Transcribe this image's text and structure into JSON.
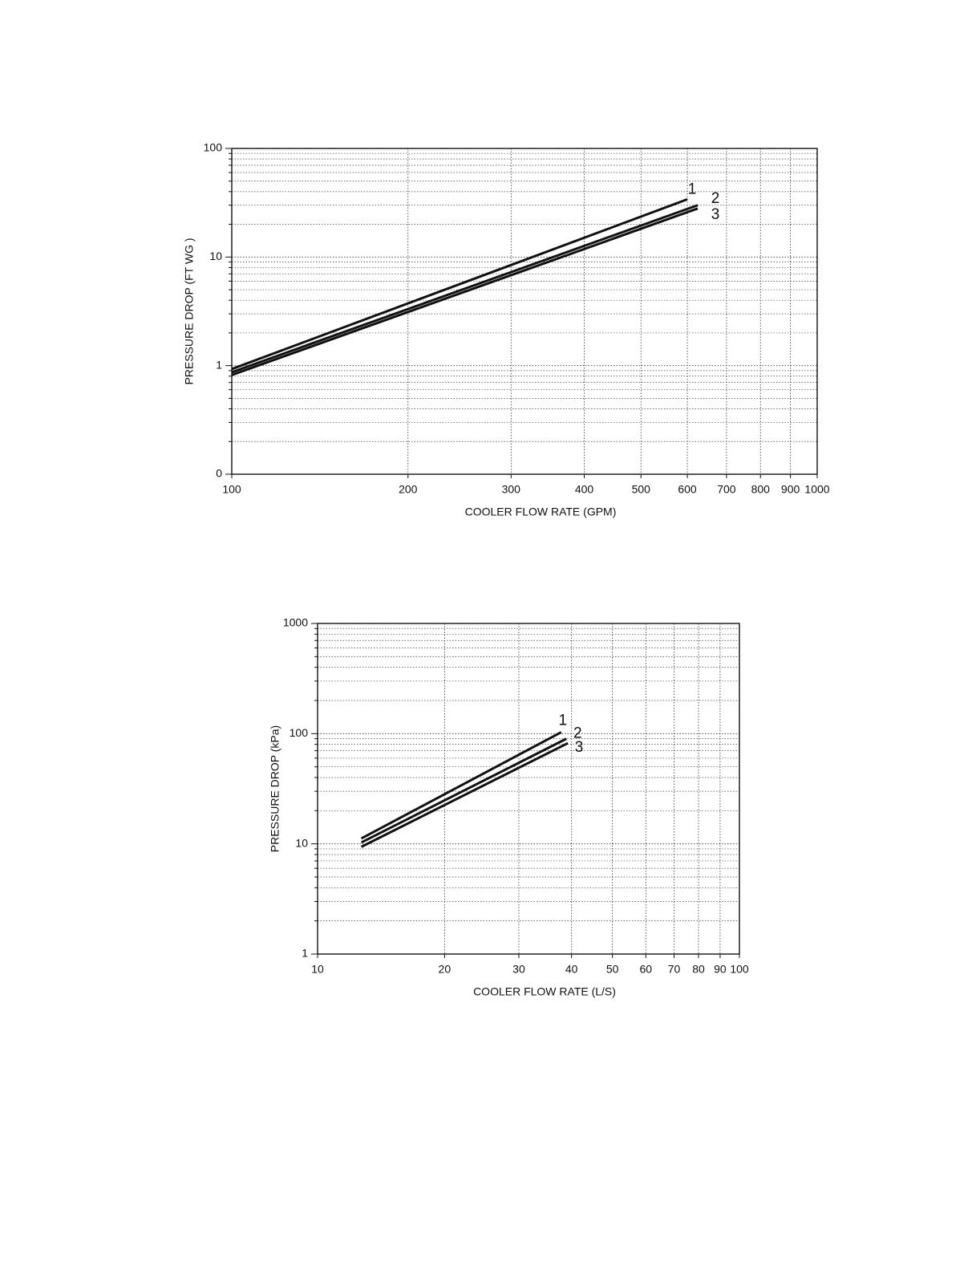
{
  "chart_data": [
    {
      "type": "line",
      "log_x": true,
      "log_y": true,
      "grid": true,
      "xlabel": "COOLER FLOW RATE (GPM)",
      "ylabel": "PRESSURE DROP (FT WG )",
      "xlim": [
        100,
        1000
      ],
      "xticks": [
        100,
        200,
        300,
        400,
        500,
        600,
        700,
        800,
        900,
        1000
      ],
      "ylim": [
        0.1,
        100
      ],
      "yticks": [
        {
          "value": 0.1,
          "label": "0"
        },
        1,
        10,
        100
      ],
      "series": [
        {
          "name": "1",
          "color": "#111111",
          "x": [
            100,
            600
          ],
          "values": [
            0.93,
            34
          ]
        },
        {
          "name": "2",
          "color": "#111111",
          "x": [
            100,
            625
          ],
          "values": [
            0.87,
            30
          ]
        },
        {
          "name": "3",
          "color": "#111111",
          "x": [
            100,
            625
          ],
          "values": [
            0.82,
            28
          ]
        }
      ]
    },
    {
      "type": "line",
      "log_x": true,
      "log_y": true,
      "grid": true,
      "xlabel": "COOLER FLOW RATE (L/S)",
      "ylabel": "PRESSURE DROP (kPa)",
      "xlim": [
        10,
        100
      ],
      "xticks": [
        10,
        20,
        30,
        40,
        50,
        60,
        70,
        80,
        90,
        100
      ],
      "ylim": [
        1,
        1000
      ],
      "yticks": [
        1,
        10,
        100,
        1000
      ],
      "series": [
        {
          "name": "1",
          "color": "#111111",
          "x": [
            12.7,
            37.8
          ],
          "values": [
            11.2,
            103
          ]
        },
        {
          "name": "2",
          "color": "#111111",
          "x": [
            12.7,
            38.9
          ],
          "values": [
            10.3,
            90
          ]
        },
        {
          "name": "3",
          "color": "#111111",
          "x": [
            12.7,
            39.2
          ],
          "values": [
            9.4,
            82
          ]
        }
      ]
    }
  ]
}
